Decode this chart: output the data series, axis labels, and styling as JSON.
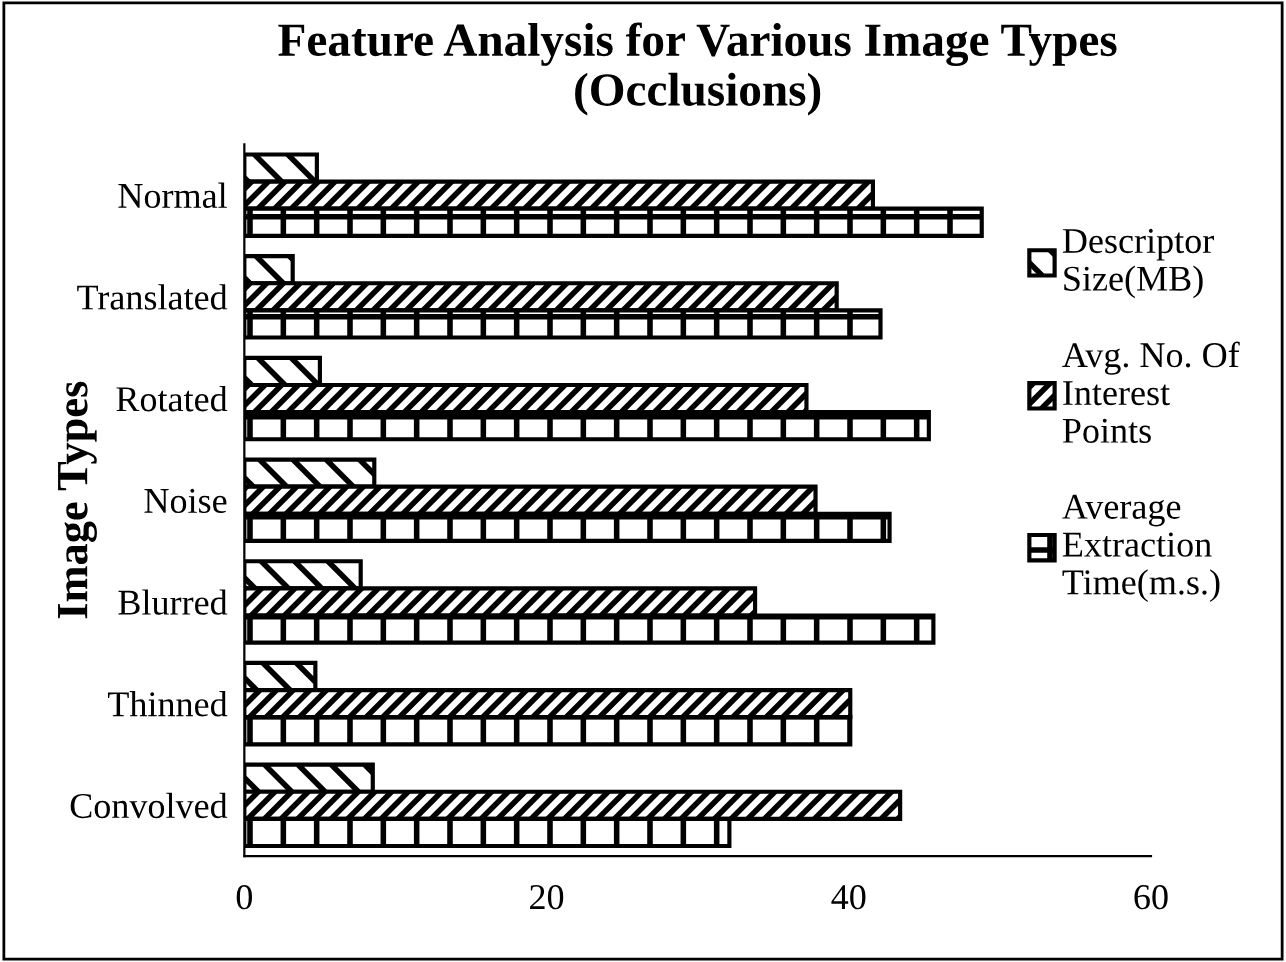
{
  "chart_data": {
    "type": "bar",
    "orientation": "horizontal",
    "title": "Feature Analysis for Various Image Types\n(Occlusions)",
    "ylabel": "Image Types",
    "categories": [
      "Normal",
      "Translated",
      "Rotated",
      "Noise",
      "Blurred",
      "Thinned",
      "Convolved"
    ],
    "series": [
      {
        "name": "Descriptor\nSize(MB)",
        "color": "#000000",
        "values": [
          4.8,
          3.2,
          5.0,
          8.6,
          7.7,
          4.7,
          8.5
        ]
      },
      {
        "name": "Avg. No. Of\nInterest\nPoints",
        "color": "#000000",
        "values": [
          41.6,
          39.2,
          37.2,
          37.8,
          33.8,
          40.1,
          43.4
        ]
      },
      {
        "name": "Average\nExtraction\nTime(m.s.)",
        "color": "#000000",
        "values": [
          48.8,
          42.1,
          45.3,
          42.7,
          45.6,
          40.1,
          32.1
        ]
      }
    ],
    "xlim": [
      0,
      60
    ],
    "xticks": [
      0,
      20,
      40,
      60
    ],
    "grid": false,
    "legend": "right"
  }
}
